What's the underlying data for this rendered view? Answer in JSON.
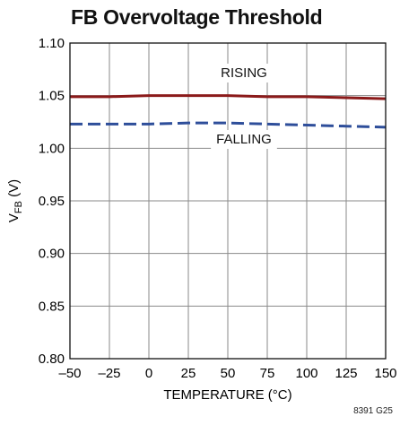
{
  "chart_data": {
    "type": "line",
    "title": "FB Overvoltage Threshold",
    "xlabel": "TEMPERATURE (°C)",
    "ylabel_main": "V",
    "ylabel_sub": "FB",
    "ylabel_suffix": " (V)",
    "xlim": [
      -50,
      150
    ],
    "ylim": [
      0.8,
      1.1
    ],
    "xticks": [
      -50,
      -25,
      0,
      25,
      50,
      75,
      100,
      125,
      150
    ],
    "xtick_labels": [
      "–50",
      "–25",
      "0",
      "25",
      "50",
      "75",
      "100",
      "125",
      "150"
    ],
    "yticks": [
      0.8,
      0.85,
      0.9,
      0.95,
      1.0,
      1.05,
      1.1
    ],
    "ytick_labels": [
      "0.80",
      "0.85",
      "0.90",
      "0.95",
      "1.00",
      "1.05",
      "1.10"
    ],
    "grid": true,
    "series": [
      {
        "name": "RISING",
        "color": "#8b1a1a",
        "dash": "solid",
        "x": [
          -50,
          -25,
          0,
          25,
          50,
          75,
          100,
          125,
          150
        ],
        "y": [
          1.049,
          1.049,
          1.05,
          1.05,
          1.05,
          1.049,
          1.049,
          1.048,
          1.047
        ]
      },
      {
        "name": "FALLING",
        "color": "#2e4e9a",
        "dash": "dashed",
        "x": [
          -50,
          -25,
          0,
          25,
          50,
          75,
          100,
          125,
          150
        ],
        "y": [
          1.023,
          1.023,
          1.023,
          1.024,
          1.024,
          1.023,
          1.022,
          1.021,
          1.02
        ]
      }
    ]
  },
  "figure_code": "8391 G25"
}
